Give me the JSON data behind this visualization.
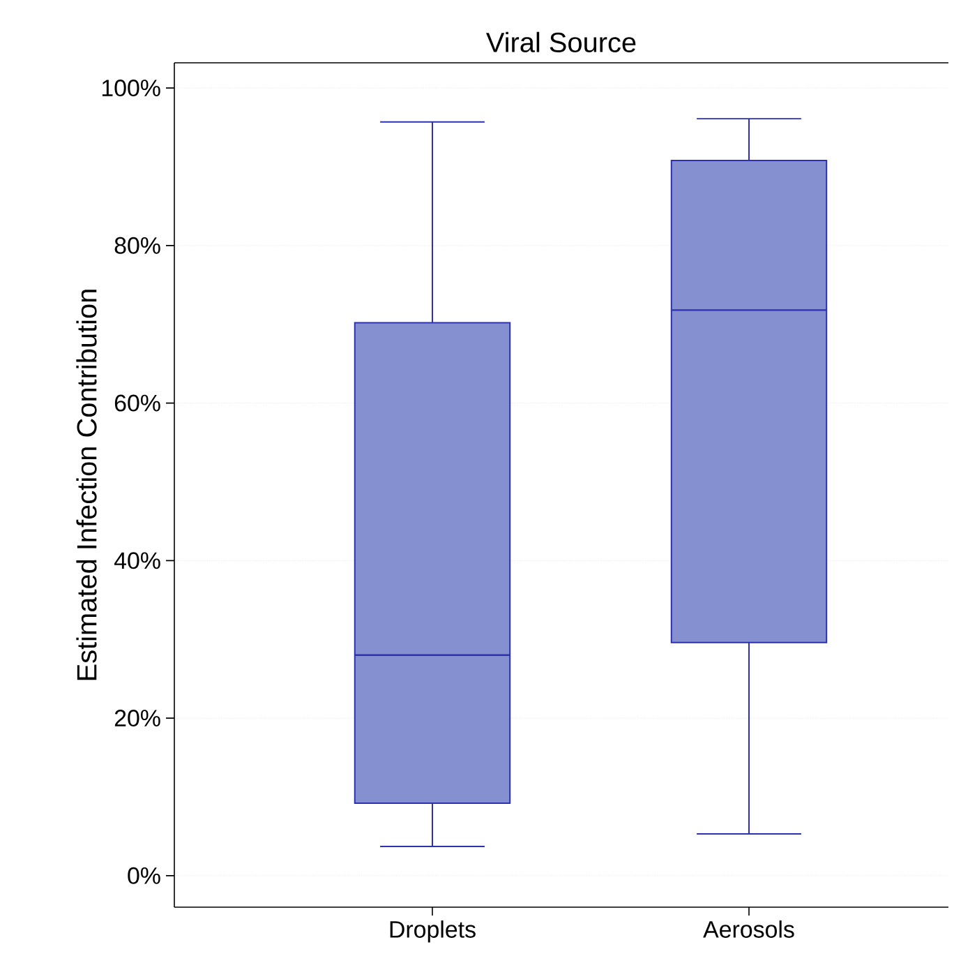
{
  "chart_data": {
    "type": "box",
    "title": "Viral Source",
    "ylabel": "Estimated Infection Contribution",
    "categories": [
      "Droplets",
      "Aerosols"
    ],
    "boxes": [
      {
        "low": 3.7,
        "q1": 9.2,
        "median": 28.0,
        "q3": 70.2,
        "high": 95.7
      },
      {
        "low": 5.3,
        "q1": 29.6,
        "median": 71.8,
        "q3": 90.8,
        "high": 96.1
      }
    ],
    "color": "#8490d0",
    "ylim": [
      -4,
      103.2
    ],
    "yticks": [
      {
        "value": 0,
        "label": "0%"
      },
      {
        "value": 20,
        "label": "20%"
      },
      {
        "value": 40,
        "label": "40%"
      },
      {
        "value": 60,
        "label": "60%"
      },
      {
        "value": 80,
        "label": "80%"
      },
      {
        "value": 100,
        "label": "100%"
      }
    ],
    "grid": "y"
  }
}
